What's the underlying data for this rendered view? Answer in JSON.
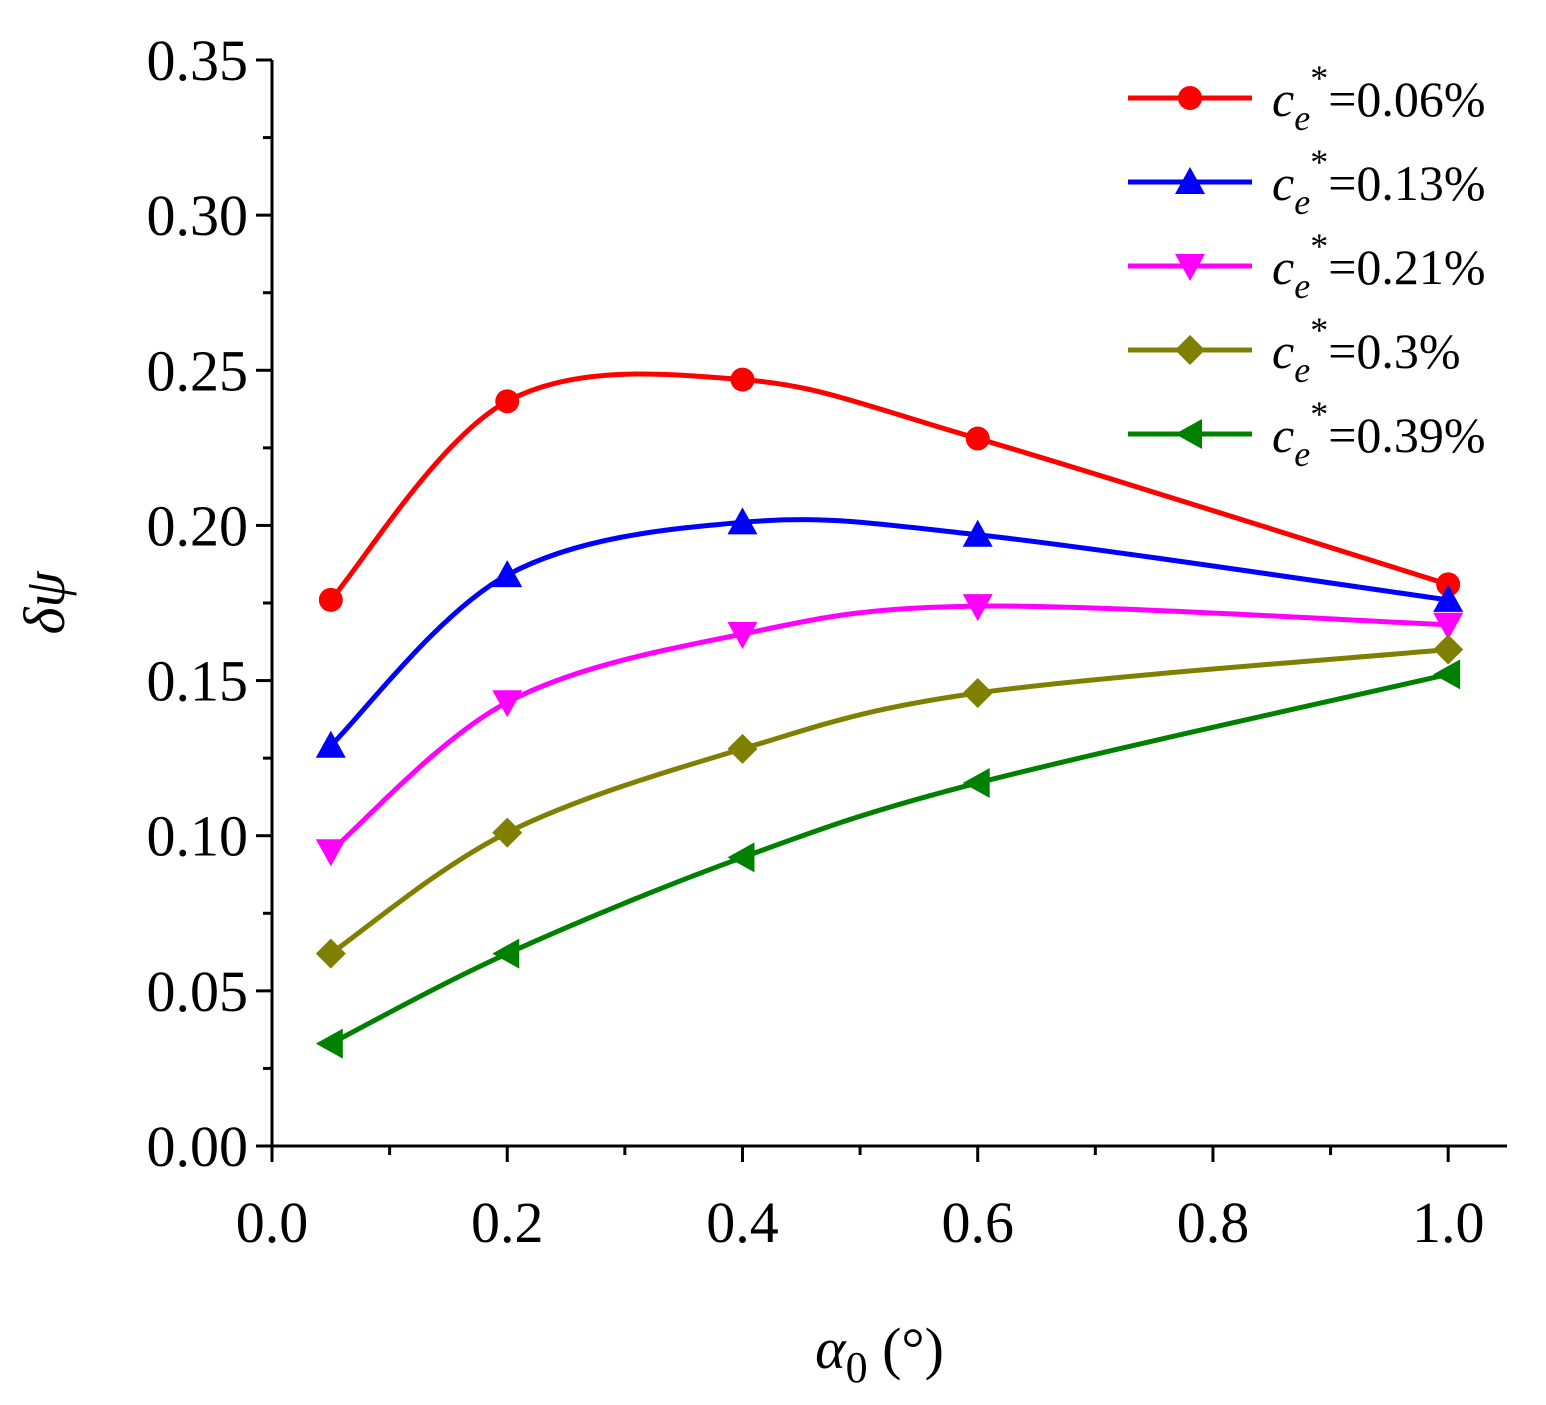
{
  "chart_data": {
    "type": "line",
    "title": "",
    "xlabel": {
      "symbol": "α",
      "subscript": "0",
      "unit": " (°)"
    },
    "ylabel": "δψ",
    "xlim": [
      0.0,
      1.05
    ],
    "ylim": [
      0.0,
      0.35
    ],
    "xticks": [
      "0.0",
      "0.2",
      "0.4",
      "0.6",
      "0.8",
      "1.0"
    ],
    "xtick_values": [
      0.0,
      0.2,
      0.4,
      0.6,
      0.8,
      1.0
    ],
    "yticks": [
      "0.00",
      "0.05",
      "0.10",
      "0.15",
      "0.20",
      "0.25",
      "0.30",
      "0.35"
    ],
    "ytick_values": [
      0.0,
      0.05,
      0.1,
      0.15,
      0.2,
      0.25,
      0.3,
      0.35
    ],
    "x": [
      0.05,
      0.2,
      0.4,
      0.6,
      1.0
    ],
    "legend_position": "top-right",
    "grid": false,
    "series": [
      {
        "name": "ce*=0.06%",
        "label_var": "c",
        "label_sub": "e",
        "label_sup": "*",
        "label_value": "=0.06%",
        "color": "#ff0000",
        "marker": "circle",
        "values": [
          0.176,
          0.24,
          0.247,
          0.228,
          0.181
        ]
      },
      {
        "name": "ce*=0.13%",
        "label_var": "c",
        "label_sub": "e",
        "label_sup": "*",
        "label_value": "=0.13%",
        "color": "#0000ff",
        "marker": "triangle-up",
        "values": [
          0.129,
          0.184,
          0.201,
          0.197,
          0.176
        ]
      },
      {
        "name": "ce*=0.21%",
        "label_var": "c",
        "label_sub": "e",
        "label_sup": "*",
        "label_value": "=0.21%",
        "color": "#ff00ff",
        "marker": "triangle-down",
        "values": [
          0.095,
          0.143,
          0.165,
          0.174,
          0.168
        ]
      },
      {
        "name": "ce*=0.3%",
        "label_var": "c",
        "label_sub": "e",
        "label_sup": "*",
        "label_value": "=0.3%",
        "color": "#808000",
        "marker": "diamond",
        "values": [
          0.062,
          0.101,
          0.128,
          0.146,
          0.16
        ]
      },
      {
        "name": "ce*=0.39%",
        "label_var": "c",
        "label_sub": "e",
        "label_sup": "*",
        "label_value": "=0.39%",
        "color": "#008000",
        "marker": "triangle-left",
        "values": [
          0.033,
          0.062,
          0.093,
          0.117,
          0.152
        ]
      }
    ]
  }
}
